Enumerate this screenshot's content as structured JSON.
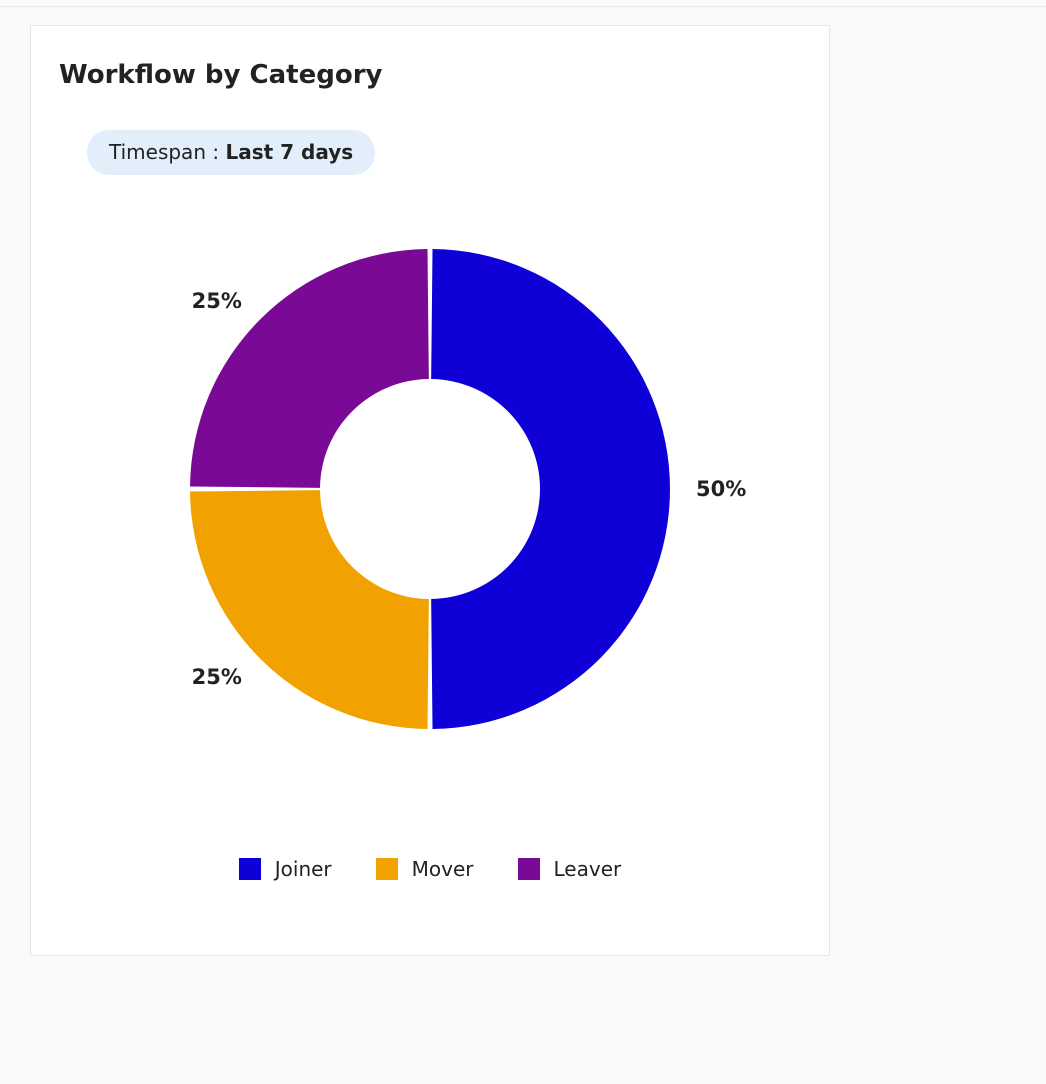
{
  "card": {
    "title": "Workflow by Category",
    "title_fontsize": 26,
    "title_fontweight": 700,
    "background_color": "#ffffff",
    "border_color": "#e6e6e6"
  },
  "timespan": {
    "label": "Timespan : ",
    "value": "Last 7 days",
    "pill_background": "#e2effb",
    "pill_radius": 22,
    "fontsize": 20
  },
  "chart": {
    "type": "pie_donut",
    "outer_radius": 240,
    "inner_radius": 110,
    "slice_gap_deg": 1.2,
    "background_color": "#ffffff",
    "slices": [
      {
        "name": "Joiner",
        "percent": 50,
        "label": "50%",
        "color": "#0e00d6"
      },
      {
        "name": "Mover",
        "percent": 25,
        "label": "25%",
        "color": "#f2a200"
      },
      {
        "name": "Leaver",
        "percent": 25,
        "label": "25%",
        "color": "#7a0996"
      }
    ],
    "pct_label_fontsize": 21,
    "pct_label_fontweight": 700,
    "pct_label_color": "#222222",
    "pct_label_offset": 26
  },
  "legend": {
    "items": [
      {
        "label": "Joiner",
        "color": "#0e00d6"
      },
      {
        "label": "Mover",
        "color": "#f2a200"
      },
      {
        "label": "Leaver",
        "color": "#7a0996"
      }
    ],
    "swatch_size": 22,
    "fontsize": 20,
    "gap": 44
  }
}
